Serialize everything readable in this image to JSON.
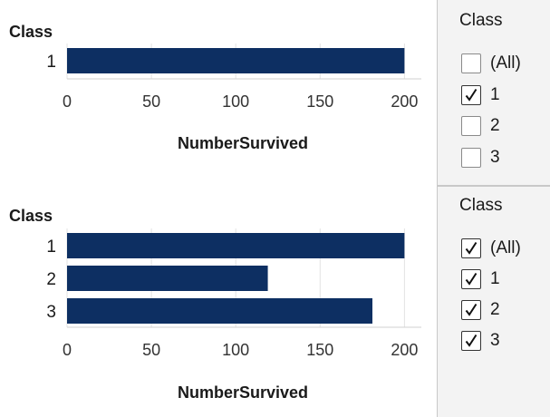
{
  "charts": [
    {
      "row_axis_title": "Class",
      "x_label": "NumberSurvived",
      "categories": [
        "1"
      ],
      "values": [
        200
      ],
      "xlim": [
        0,
        210
      ],
      "ticks": [
        "0",
        "50",
        "100",
        "150",
        "200"
      ],
      "bar_color": "#0d2f62"
    },
    {
      "row_axis_title": "Class",
      "x_label": "NumberSurvived",
      "categories": [
        "1",
        "2",
        "3"
      ],
      "values": [
        200,
        119,
        181
      ],
      "xlim": [
        0,
        210
      ],
      "ticks": [
        "0",
        "50",
        "100",
        "150",
        "200"
      ],
      "bar_color": "#0d2f62"
    }
  ],
  "filters": [
    {
      "title": "Class",
      "options": [
        {
          "label": "(All)",
          "checked": false
        },
        {
          "label": "1",
          "checked": true
        },
        {
          "label": "2",
          "checked": false
        },
        {
          "label": "3",
          "checked": false
        }
      ]
    },
    {
      "title": "Class",
      "options": [
        {
          "label": "(All)",
          "checked": true
        },
        {
          "label": "1",
          "checked": true
        },
        {
          "label": "2",
          "checked": true
        },
        {
          "label": "3",
          "checked": true
        }
      ]
    }
  ]
}
